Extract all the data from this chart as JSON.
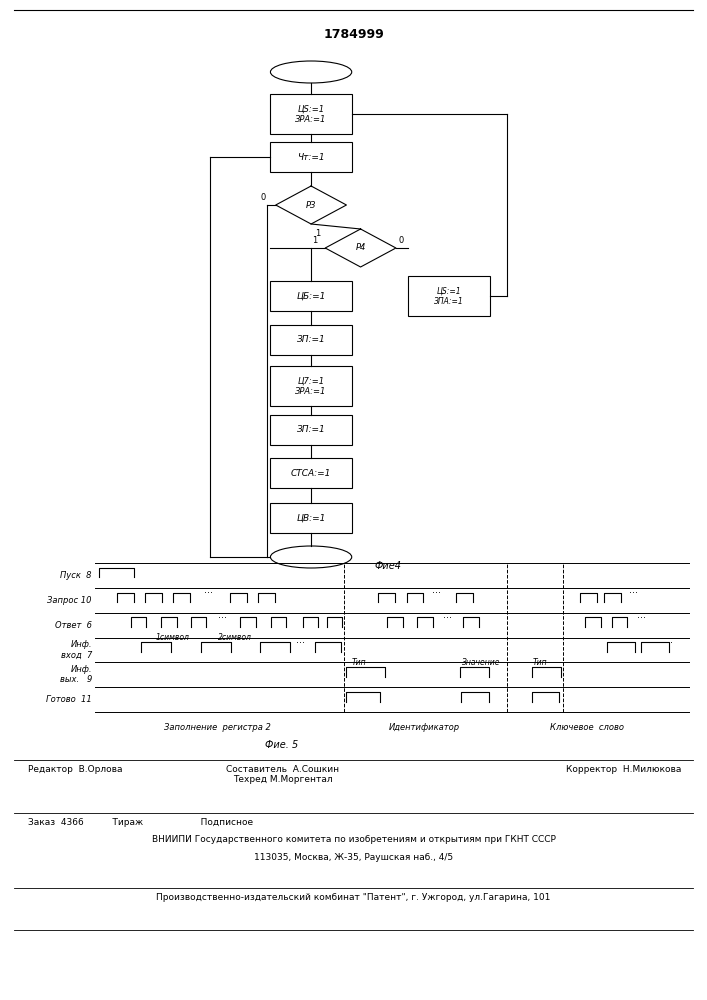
{
  "title": "1784999",
  "fig4_label": "Фие4",
  "fig5_label": "Фие. 5",
  "footer": {
    "line1_left": "Редактор  В.Орлова",
    "line1_center": "Составитель  А.Сошкин\nТехред М.Моргентал",
    "line1_right": "Корректор  Н.Милюкова",
    "line2": "Заказ  4366          Тираж                    Подписное",
    "line3": "ВНИИПИ Государственного комитета по изобретениям и открытиям при ГКНТ СССР",
    "line4": "113035, Москва, Ж-35, Раушская наб., 4/5",
    "line5": "Производственно-издательский комбинат \"Патент\", г. Ужгород, ул.Гагарина, 101"
  }
}
